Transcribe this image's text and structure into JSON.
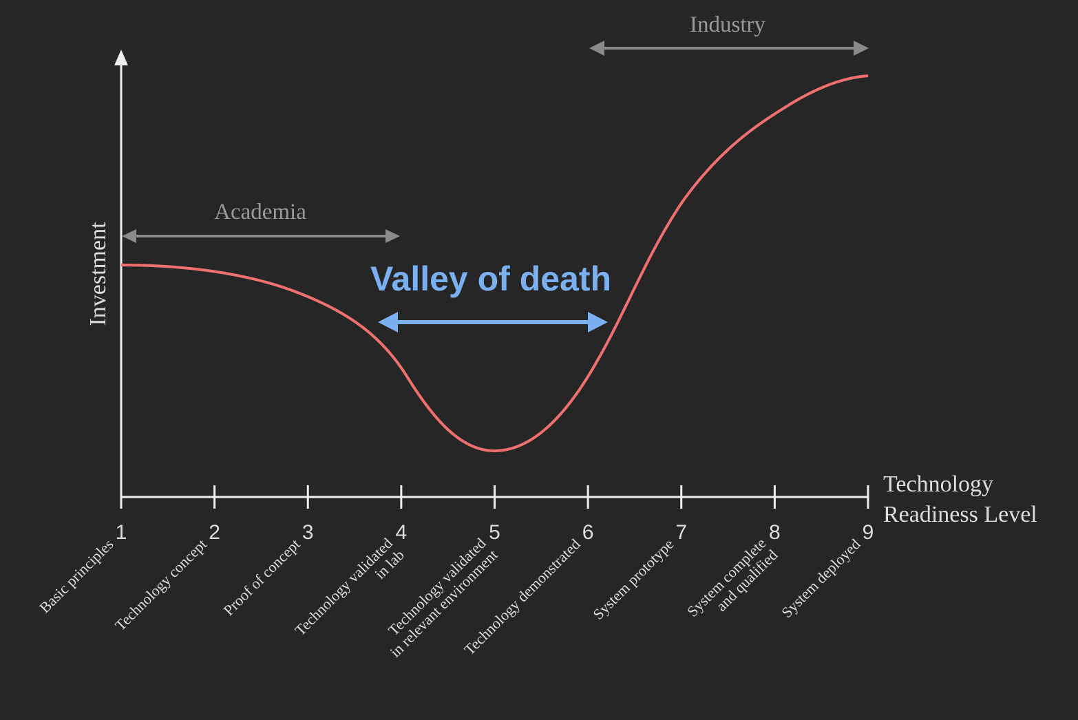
{
  "title": "Valley of death",
  "y_axis_label": "Investment",
  "x_axis_label": [
    "Technology",
    "Readiness Level"
  ],
  "annotations": {
    "academia": "Academia",
    "industry": "Industry"
  },
  "levels": [
    {
      "number": "1",
      "lines": [
        "Basic principles"
      ]
    },
    {
      "number": "2",
      "lines": [
        "Technology concept"
      ]
    },
    {
      "number": "3",
      "lines": [
        "Proof of concept"
      ]
    },
    {
      "number": "4",
      "lines": [
        "Technology validated",
        "in lab"
      ]
    },
    {
      "number": "5",
      "lines": [
        "Technology validated",
        "in relevant environment"
      ]
    },
    {
      "number": "6",
      "lines": [
        "Technology demonstrated"
      ]
    },
    {
      "number": "7",
      "lines": [
        "System prototype"
      ]
    },
    {
      "number": "8",
      "lines": [
        "System complete",
        "and qualified"
      ]
    },
    {
      "number": "9",
      "lines": [
        "System deployed"
      ]
    }
  ]
}
